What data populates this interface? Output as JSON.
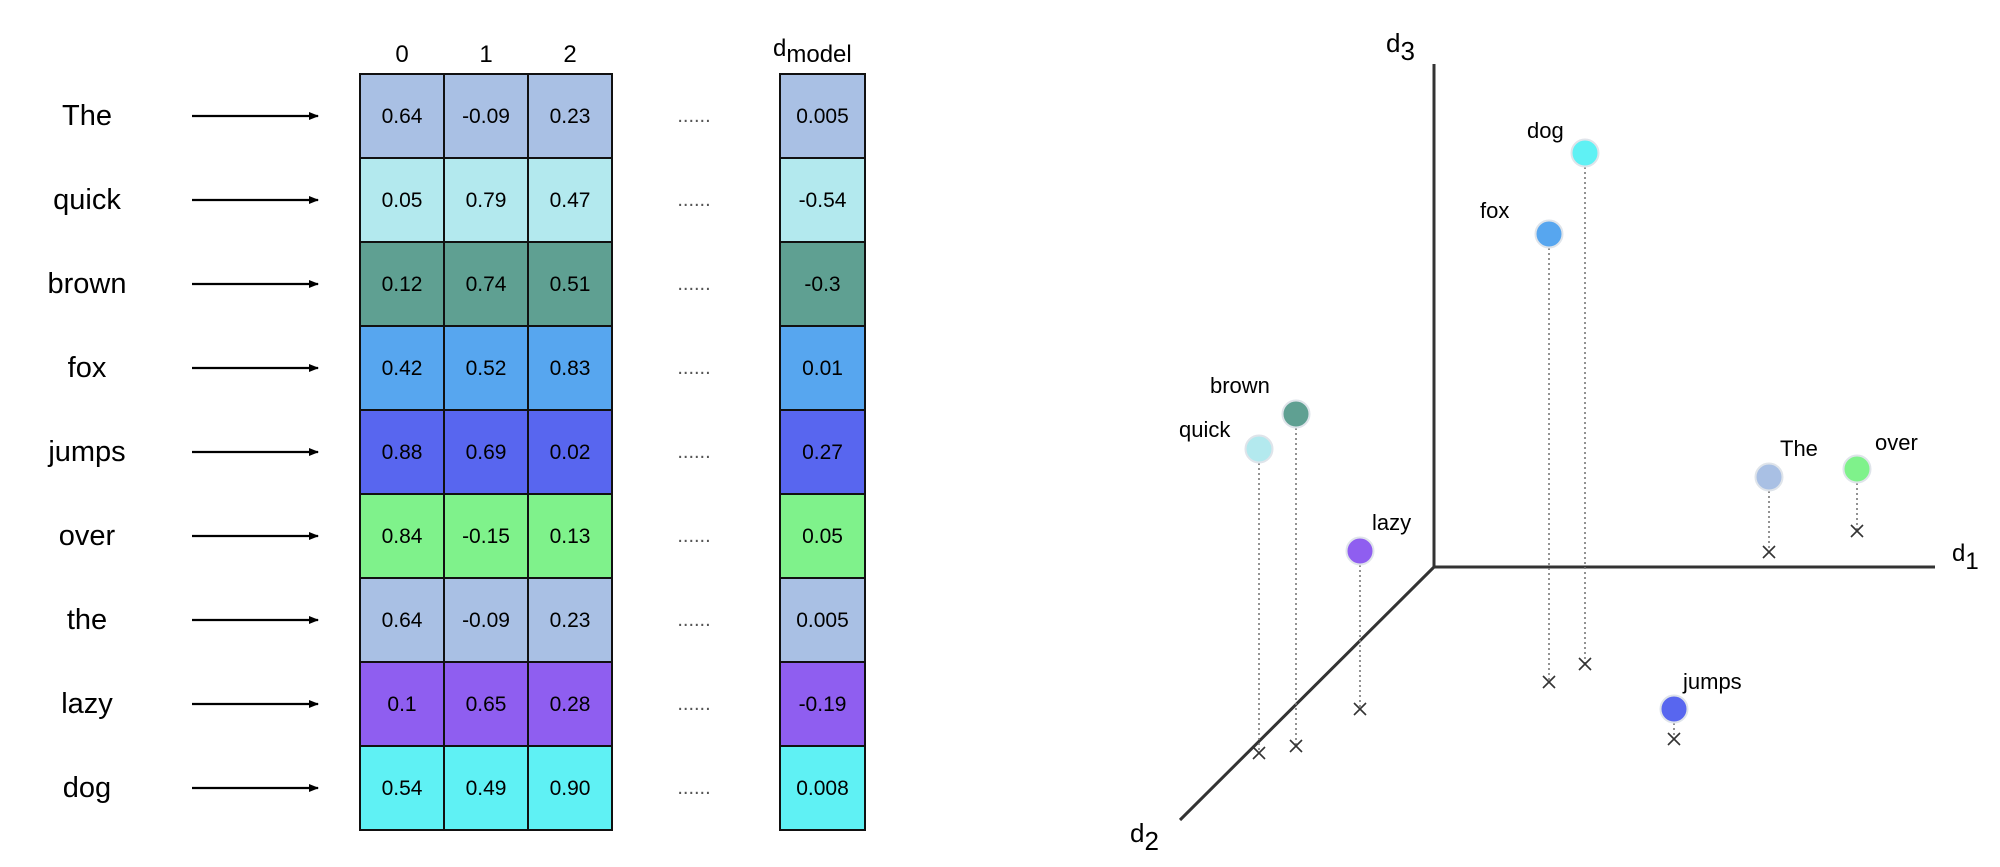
{
  "matrix": {
    "column_headers": [
      "0",
      "1",
      "2"
    ],
    "last_column_header": {
      "base": "d",
      "subscript": "model"
    },
    "ellipsis": "......",
    "rows": [
      {
        "word": "The",
        "values": [
          "0.64",
          "-0.09",
          "0.23"
        ],
        "last": "0.005",
        "color": "#a9c0e4"
      },
      {
        "word": "quick",
        "values": [
          "0.05",
          "0.79",
          "0.47"
        ],
        "last": "-0.54",
        "color": "#b3e9ee"
      },
      {
        "word": "brown",
        "values": [
          "0.12",
          "0.74",
          "0.51"
        ],
        "last": "-0.3",
        "color": "#5fa092"
      },
      {
        "word": "fox",
        "values": [
          "0.42",
          "0.52",
          "0.83"
        ],
        "last": "0.01",
        "color": "#57a6ef"
      },
      {
        "word": "jumps",
        "values": [
          "0.88",
          "0.69",
          "0.02"
        ],
        "last": "0.27",
        "color": "#5866ef"
      },
      {
        "word": "over",
        "values": [
          "0.84",
          "-0.15",
          "0.13"
        ],
        "last": "0.05",
        "color": "#7ff28b"
      },
      {
        "word": "the",
        "values": [
          "0.64",
          "-0.09",
          "0.23"
        ],
        "last": "0.005",
        "color": "#a9c0e4"
      },
      {
        "word": "lazy",
        "values": [
          "0.1",
          "0.65",
          "0.28"
        ],
        "last": "-0.19",
        "color": "#8f5ef0"
      },
      {
        "word": "dog",
        "values": [
          "0.54",
          "0.49",
          "0.90"
        ],
        "last": "0.008",
        "color": "#5ff1f4"
      }
    ]
  },
  "space": {
    "axes": [
      {
        "base": "d",
        "subscript": "1"
      },
      {
        "base": "d",
        "subscript": "2"
      },
      {
        "base": "d",
        "subscript": "3"
      }
    ],
    "points": [
      {
        "word": "dog",
        "color": "#5ff1f4"
      },
      {
        "word": "fox",
        "color": "#57a6ef"
      },
      {
        "word": "brown",
        "color": "#5fa092"
      },
      {
        "word": "quick",
        "color": "#b3e9ee"
      },
      {
        "word": "lazy",
        "color": "#8f5ef0"
      },
      {
        "word": "The",
        "color": "#a9c0e4"
      },
      {
        "word": "over",
        "color": "#7ff28b"
      },
      {
        "word": "jumps",
        "color": "#5866ef"
      }
    ]
  }
}
